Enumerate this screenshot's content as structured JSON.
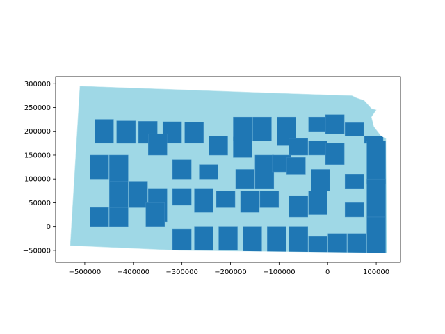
{
  "figure": {
    "background": "#ffffff"
  },
  "map": {
    "type": "choropleth",
    "region": "Kansas counties",
    "categories": 2,
    "colors": {
      "light": "#9fd8e6",
      "dark": "#1f77b4"
    },
    "xlim": [
      -560000,
      150000
    ],
    "ylim": [
      -75000,
      315000
    ],
    "x_ticks": [
      {
        "value": -500000,
        "label": "−500000"
      },
      {
        "value": -400000,
        "label": "−400000"
      },
      {
        "value": -300000,
        "label": "−300000"
      },
      {
        "value": -200000,
        "label": "−200000"
      },
      {
        "value": -100000,
        "label": "−100000"
      },
      {
        "value": 0,
        "label": "0"
      },
      {
        "value": 100000,
        "label": "100000"
      }
    ],
    "y_ticks": [
      {
        "value": 300000,
        "label": "300000"
      },
      {
        "value": 250000,
        "label": "250000"
      },
      {
        "value": 200000,
        "label": "200000"
      },
      {
        "value": 150000,
        "label": "150000"
      },
      {
        "value": 100000,
        "label": "100000"
      },
      {
        "value": 50000,
        "label": "50000"
      },
      {
        "value": 0,
        "label": "0"
      },
      {
        "value": -50000,
        "label": "−50000"
      }
    ],
    "outline": [
      [
        -510000,
        295000
      ],
      [
        -100000,
        280000
      ],
      [
        50000,
        275000
      ],
      [
        60000,
        270000
      ],
      [
        75000,
        265000
      ],
      [
        90000,
        248000
      ],
      [
        100000,
        245000
      ],
      [
        90000,
        230000
      ],
      [
        95000,
        210000
      ],
      [
        110000,
        190000
      ],
      [
        120000,
        185000
      ],
      [
        122000,
        -55000
      ],
      [
        -305000,
        -50000
      ],
      [
        -530000,
        -40000
      ]
    ],
    "dark_cells": [
      [
        -460000,
        175000,
        225000
      ],
      [
        -415000,
        175000,
        222000
      ],
      [
        -370000,
        175000,
        221000
      ],
      [
        -320000,
        175000,
        220000
      ],
      [
        -275000,
        175000,
        219000
      ],
      [
        -225000,
        150000,
        190000
      ],
      [
        -175000,
        145000,
        188000
      ],
      [
        -175000,
        180000,
        230000
      ],
      [
        -135000,
        180000,
        230000
      ],
      [
        -85000,
        170000,
        230000
      ],
      [
        -60000,
        150000,
        185000
      ],
      [
        -20000,
        150000,
        180000
      ],
      [
        -20000,
        200000,
        230000
      ],
      [
        15000,
        195000,
        235000
      ],
      [
        55000,
        190000,
        218000
      ],
      [
        95000,
        175000,
        190000
      ],
      [
        100000,
        90000,
        180000
      ],
      [
        -350000,
        150000,
        195000
      ],
      [
        -470000,
        100000,
        150000
      ],
      [
        -430000,
        95000,
        150000
      ],
      [
        -300000,
        100000,
        140000
      ],
      [
        -245000,
        100000,
        130000
      ],
      [
        -170000,
        80000,
        120000
      ],
      [
        -130000,
        80000,
        150000
      ],
      [
        -95000,
        115000,
        150000
      ],
      [
        -65000,
        110000,
        145000
      ],
      [
        -15000,
        75000,
        120000
      ],
      [
        15000,
        130000,
        175000
      ],
      [
        55000,
        80000,
        110000
      ],
      [
        100000,
        60000,
        100000
      ],
      [
        -430000,
        40000,
        95000
      ],
      [
        -390000,
        40000,
        95000
      ],
      [
        -350000,
        10000,
        80000
      ],
      [
        -300000,
        45000,
        80000
      ],
      [
        -255000,
        30000,
        80000
      ],
      [
        -210000,
        40000,
        75000
      ],
      [
        -160000,
        30000,
        75000
      ],
      [
        -120000,
        40000,
        75000
      ],
      [
        -60000,
        20000,
        65000
      ],
      [
        -20000,
        25000,
        75000
      ],
      [
        55000,
        20000,
        50000
      ],
      [
        100000,
        20000,
        60000
      ],
      [
        -470000,
        0,
        40000
      ],
      [
        -430000,
        0,
        40000
      ],
      [
        -355000,
        0,
        50000
      ],
      [
        -300000,
        -50000,
        -5000
      ],
      [
        -255000,
        -50000,
        0
      ],
      [
        -205000,
        -50000,
        0
      ],
      [
        -155000,
        -52000,
        0
      ],
      [
        -105000,
        -55000,
        0
      ],
      [
        -60000,
        -55000,
        0
      ],
      [
        -20000,
        -55000,
        -20000
      ],
      [
        20000,
        -55000,
        -15000
      ],
      [
        60000,
        -55000,
        -15000
      ],
      [
        100000,
        -55000,
        20000
      ]
    ]
  }
}
